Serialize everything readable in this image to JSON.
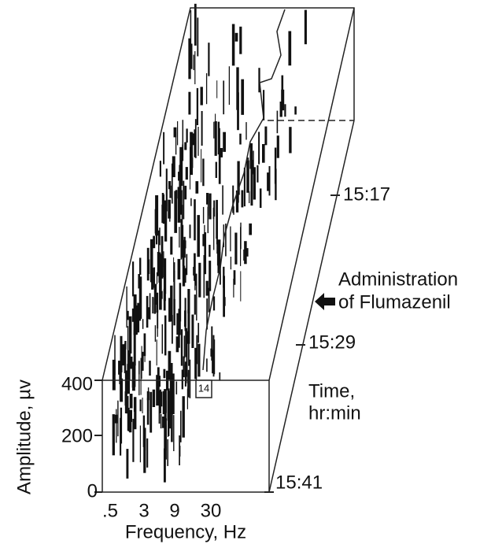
{
  "figure": {
    "y_axis": {
      "label": "Amplitude, µv",
      "ticks": [
        "400",
        "200",
        "0"
      ]
    },
    "x_axis": {
      "label": "Frequency, Hz",
      "ticks": [
        ".5",
        "3",
        "9",
        "30"
      ]
    },
    "time_axis": {
      "label_line1": "Time,",
      "label_line2": "hr:min",
      "ticks": [
        "15:17",
        "15:29",
        "15:41"
      ]
    },
    "annotation": {
      "line1": "Administration",
      "line2": "of Flumazenil"
    },
    "marker": "14"
  }
}
